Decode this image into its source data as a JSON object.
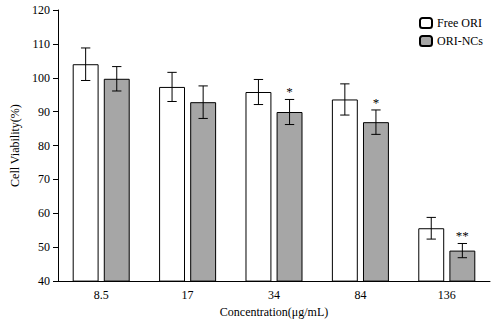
{
  "chart_data": {
    "type": "bar",
    "x_label": "Concentration(μg/mL)",
    "y_label": "Cell Viability(%)",
    "categories": [
      "8.5",
      "17",
      "34",
      "84",
      "136"
    ],
    "series": [
      {
        "name": "Free ORI",
        "color": "#ffffff",
        "values": [
          104.0,
          97.3,
          95.8,
          93.6,
          55.6
        ],
        "errors": [
          4.8,
          4.3,
          3.7,
          4.6,
          3.2
        ]
      },
      {
        "name": "ORI-NCs",
        "color": "#a6a6a6",
        "values": [
          99.7,
          92.8,
          89.9,
          86.9,
          49.0
        ],
        "errors": [
          3.6,
          4.8,
          3.7,
          3.6,
          2.1
        ],
        "annotations": [
          null,
          null,
          "*",
          "*",
          "**"
        ]
      }
    ],
    "ylim": [
      40,
      120
    ],
    "yticks": [
      40,
      50,
      60,
      70,
      80,
      90,
      100,
      110,
      120
    ],
    "grid": false,
    "legend": "upper right"
  }
}
